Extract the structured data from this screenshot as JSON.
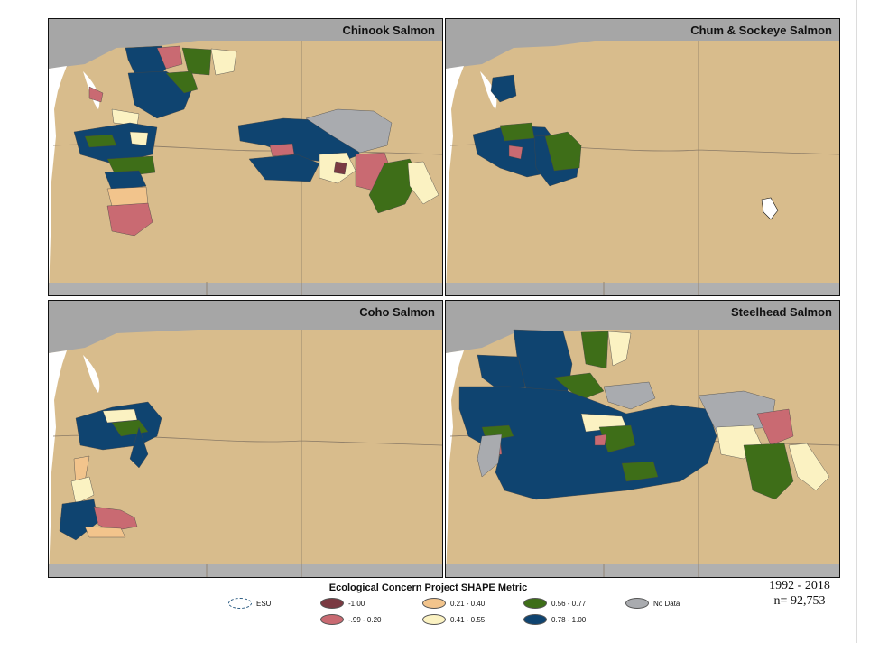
{
  "panels": [
    {
      "title": "Chinook Salmon"
    },
    {
      "title": "Chum & Sockeye Salmon"
    },
    {
      "title": "Coho Salmon"
    },
    {
      "title": "Steelhead Salmon"
    }
  ],
  "legend": {
    "title": "Ecological Concern Project SHAPE Metric",
    "items": [
      {
        "label": "ESU",
        "color": "#ffffff",
        "outline": "#2a5b82",
        "dashed": true
      },
      {
        "label": "-1.00",
        "color": "#7a3a42"
      },
      {
        "label": "-.99 - 0.20",
        "color": "#c96a72"
      },
      {
        "label": "0.21 - 0.40",
        "color": "#f2c48c"
      },
      {
        "label": "0.41 - 0.55",
        "color": "#fbf2c2"
      },
      {
        "label": "0.56 - 0.77",
        "color": "#3e6e18"
      },
      {
        "label": "0.78 - 1.00",
        "color": "#0f4470"
      },
      {
        "label": "No Data",
        "color": "#a9abaf"
      }
    ]
  },
  "stats": {
    "years": "1992 - 2018",
    "n": "n= 92,753"
  },
  "colors": {
    "land": "#d8bc8c",
    "ocean": "#ffffff",
    "canada": "#a6a6a6",
    "boundary": "#8a7a66"
  }
}
